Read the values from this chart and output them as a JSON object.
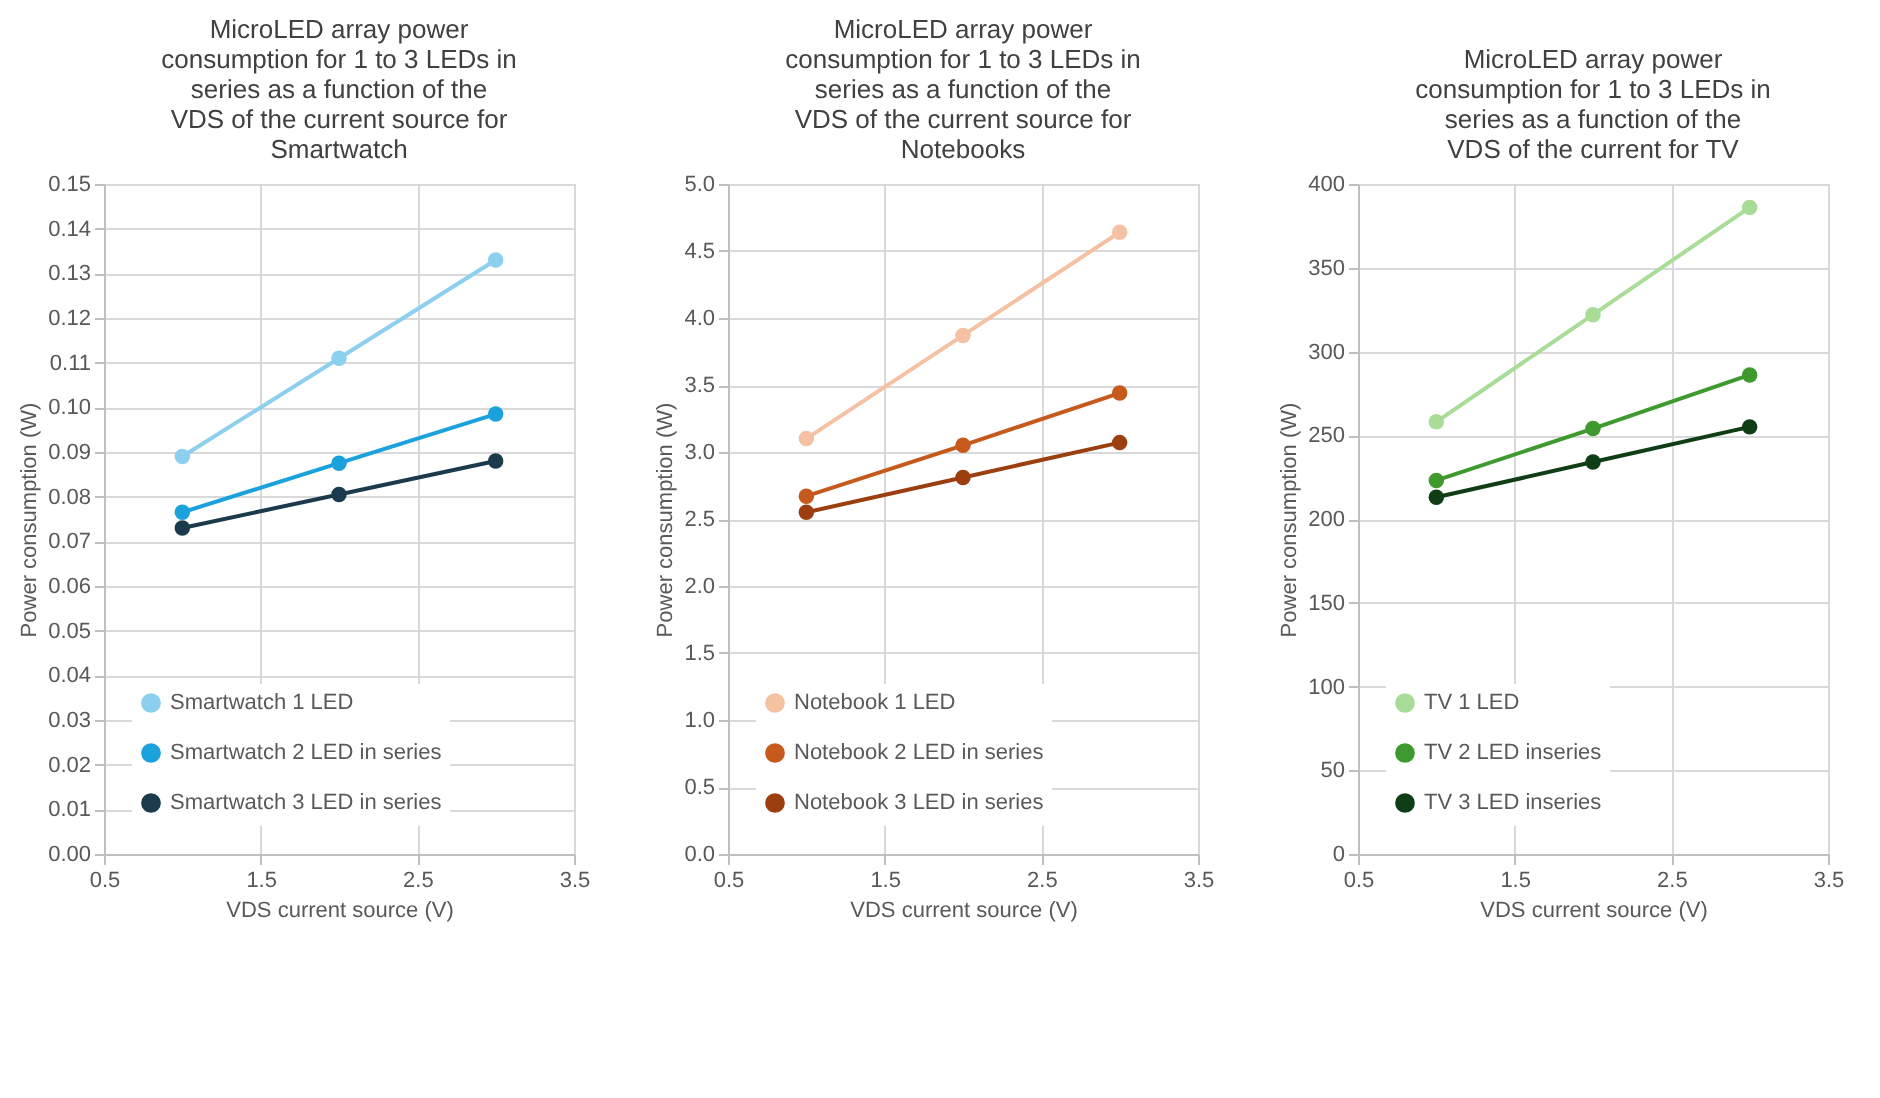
{
  "chart_data": [
    {
      "type": "line",
      "title": "MicroLED array power consumption for 1 to 3 LEDs in series as a function of the VDS of the current source for Smartwatch",
      "xlabel": "VDS current source (V)",
      "ylabel": "Power consumption (W)",
      "x": [
        1,
        2,
        3
      ],
      "series": [
        {
          "name": "Smartwatch 1 LED",
          "color": "#8ccfee",
          "values": [
            0.089,
            0.111,
            0.133
          ]
        },
        {
          "name": "Smartwatch 2 LED in series",
          "color": "#1ba1dc",
          "values": [
            0.0765,
            0.0875,
            0.0985
          ]
        },
        {
          "name": "Smartwatch 3 LED in series",
          "color": "#1b3a4b",
          "values": [
            0.073,
            0.0805,
            0.088
          ]
        }
      ],
      "xlim": [
        0.5,
        3.5
      ],
      "xticks": [
        0.5,
        1.5,
        2.5,
        3.5
      ],
      "ylim": [
        0,
        0.15
      ],
      "yticks": [
        {
          "value": 0,
          "label": "0.00"
        },
        0.01,
        0.02,
        0.03,
        0.04,
        0.05,
        0.06,
        0.07,
        0.08,
        0.09,
        {
          "value": 0.1,
          "label": "0.10"
        },
        0.11,
        0.12,
        0.13,
        0.14,
        0.15
      ],
      "grid": true,
      "legend": "bottom left",
      "marker": "circle",
      "line_style": "solid"
    },
    {
      "type": "line",
      "title": "MicroLED array power consumption for 1 to 3 LEDs in series as a function of the VDS of the current source for Notebooks",
      "xlabel": "VDS current source (V)",
      "ylabel": "Power consumption (W)",
      "x": [
        1,
        2,
        3
      ],
      "series": [
        {
          "name": "Notebook 1 LED",
          "color": "#f4c2a3",
          "values": [
            3.1,
            3.87,
            4.64
          ]
        },
        {
          "name": "Notebook 2 LED in series",
          "color": "#c55a1c",
          "values": [
            2.67,
            3.05,
            3.44
          ]
        },
        {
          "name": "Notebook 3 LED in series",
          "color": "#9c3f10",
          "values": [
            2.55,
            2.81,
            3.07
          ]
        }
      ],
      "xlim": [
        0.5,
        3.5
      ],
      "xticks": [
        0.5,
        1.5,
        2.5,
        3.5
      ],
      "ylim": [
        0,
        5
      ],
      "yticks": [
        {
          "value": 0,
          "label": "0.0"
        },
        0.5,
        {
          "value": 1,
          "label": "1.0"
        },
        1.5,
        {
          "value": 2,
          "label": "2.0"
        },
        2.5,
        {
          "value": 3,
          "label": "3.0"
        },
        3.5,
        {
          "value": 4,
          "label": "4.0"
        },
        4.5,
        {
          "value": 5,
          "label": "5.0"
        }
      ],
      "grid": true,
      "legend": "bottom left",
      "marker": "circle",
      "line_style": "solid"
    },
    {
      "type": "line",
      "title": "MicroLED array power consumption for 1 to 3 LEDs in series as a function of the VDS of the current for TV",
      "xlabel": "VDS current source (V)",
      "ylabel": "Power consumption (W)",
      "x": [
        1,
        2,
        3
      ],
      "series": [
        {
          "name": "TV 1 LED",
          "color": "#a9dc97",
          "values": [
            258,
            322,
            386
          ]
        },
        {
          "name": "TV 2 LED inseries",
          "color": "#3e9a2f",
          "values": [
            223,
            254,
            286
          ]
        },
        {
          "name": "TV 3 LED inseries",
          "color": "#0f3e16",
          "values": [
            213,
            234,
            255
          ]
        }
      ],
      "xlim": [
        0.5,
        3.5
      ],
      "xticks": [
        0.5,
        1.5,
        2.5,
        3.5
      ],
      "ylim": [
        0,
        400
      ],
      "yticks": [
        0,
        50,
        100,
        150,
        200,
        250,
        300,
        350,
        400
      ],
      "grid": true,
      "legend": "bottom left",
      "marker": "circle",
      "line_style": "solid"
    }
  ]
}
